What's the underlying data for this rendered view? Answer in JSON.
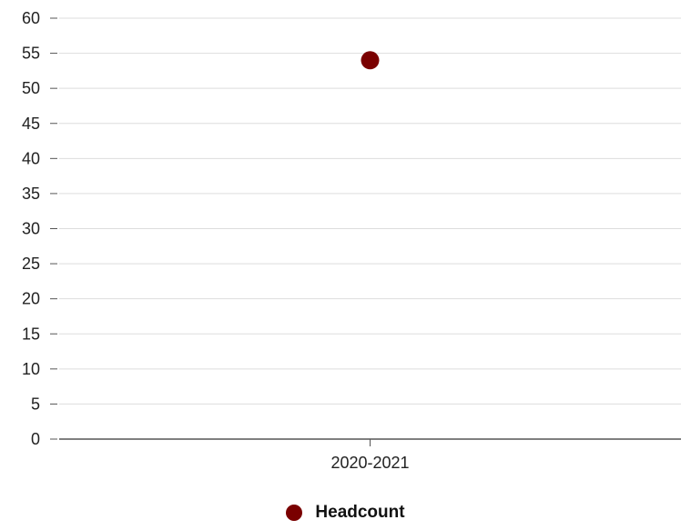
{
  "chart_data": {
    "type": "scatter",
    "categories": [
      "2020-2021"
    ],
    "series": [
      {
        "name": "Headcount",
        "values": [
          54
        ],
        "color": "#7a0000"
      }
    ],
    "ylim": [
      0,
      60
    ],
    "yticks": [
      0,
      5,
      10,
      15,
      20,
      25,
      30,
      35,
      40,
      45,
      50,
      55,
      60
    ],
    "grid": true,
    "legend_position": "bottom"
  }
}
